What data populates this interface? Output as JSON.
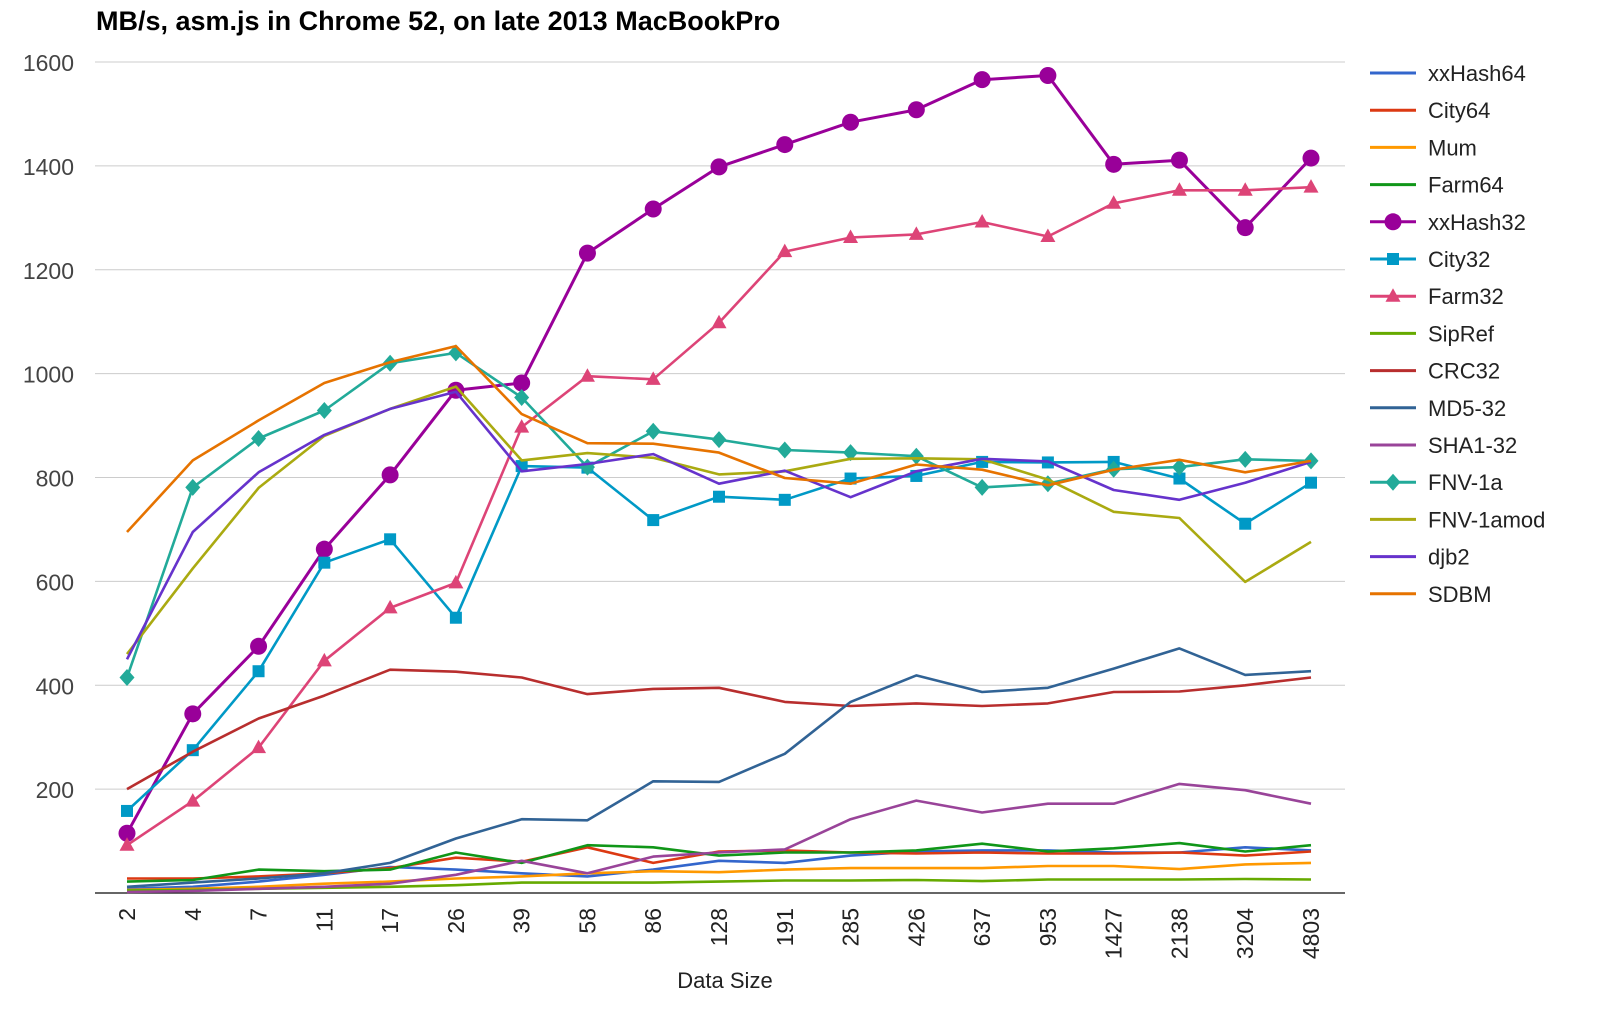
{
  "chart_data": {
    "type": "line",
    "title": "MB/s, asm.js in Chrome 52, on late 2013 MacBookPro",
    "xlabel": "Data Size",
    "ylabel": "",
    "ylim": [
      0,
      1600
    ],
    "yticks": [
      200,
      400,
      600,
      800,
      1000,
      1200,
      1400,
      1600
    ],
    "grid": true,
    "legend_position": "right",
    "categories": [
      "2",
      "4",
      "7",
      "11",
      "17",
      "26",
      "39",
      "58",
      "86",
      "128",
      "191",
      "285",
      "426",
      "637",
      "953",
      "1427",
      "2138",
      "3204",
      "4803"
    ],
    "series": [
      {
        "name": "xxHash64",
        "color": "#3366cc",
        "marker": "none",
        "values": [
          8,
          12,
          22,
          35,
          50,
          45,
          38,
          32,
          45,
          62,
          58,
          72,
          80,
          82,
          82,
          78,
          78,
          88,
          82
        ]
      },
      {
        "name": "City64",
        "color": "#dc3912",
        "marker": "none",
        "values": [
          28,
          28,
          32,
          38,
          48,
          68,
          60,
          88,
          58,
          80,
          82,
          78,
          76,
          78,
          76,
          76,
          78,
          72,
          80
        ]
      },
      {
        "name": "Mum",
        "color": "#ff9900",
        "marker": "none",
        "values": [
          6,
          8,
          12,
          18,
          22,
          28,
          32,
          38,
          42,
          40,
          45,
          48,
          48,
          48,
          52,
          52,
          46,
          55,
          58
        ]
      },
      {
        "name": "Farm64",
        "color": "#109618",
        "marker": "none",
        "values": [
          22,
          25,
          45,
          42,
          45,
          78,
          58,
          92,
          88,
          72,
          78,
          78,
          82,
          95,
          80,
          86,
          96,
          80,
          92
        ]
      },
      {
        "name": "xxHash32",
        "color": "#990099",
        "marker": "circle",
        "values": [
          115,
          345,
          475,
          662,
          805,
          968,
          982,
          1232,
          1317,
          1398,
          1441,
          1484,
          1508,
          1566,
          1574,
          1403,
          1411,
          1281,
          1415
        ]
      },
      {
        "name": "City32",
        "color": "#0099c6",
        "marker": "square",
        "values": [
          158,
          275,
          427,
          636,
          681,
          530,
          822,
          819,
          718,
          763,
          757,
          798,
          803,
          830,
          829,
          830,
          798,
          711,
          790
        ]
      },
      {
        "name": "Farm32",
        "color": "#dd4477",
        "marker": "triangle",
        "values": [
          92,
          177,
          280,
          447,
          549,
          597,
          897,
          995,
          989,
          1098,
          1235,
          1262,
          1268,
          1292,
          1264,
          1328,
          1353,
          1353,
          1359
        ]
      },
      {
        "name": "SipRef",
        "color": "#66aa00",
        "marker": "none",
        "values": [
          5,
          6,
          8,
          10,
          12,
          15,
          20,
          20,
          20,
          22,
          24,
          24,
          25,
          23,
          26,
          26,
          26,
          27,
          26
        ]
      },
      {
        "name": "CRC32",
        "color": "#b82e2e",
        "marker": "none",
        "values": [
          200,
          272,
          336,
          380,
          430,
          426,
          415,
          383,
          393,
          395,
          368,
          360,
          365,
          360,
          365,
          387,
          388,
          400,
          415
        ]
      },
      {
        "name": "MD5-32",
        "color": "#316395",
        "marker": "none",
        "values": [
          12,
          20,
          28,
          38,
          58,
          105,
          142,
          140,
          215,
          214,
          268,
          368,
          419,
          387,
          395,
          432,
          471,
          420,
          427
        ]
      },
      {
        "name": "SHA1-32",
        "color": "#994499",
        "marker": "none",
        "values": [
          2,
          4,
          8,
          12,
          18,
          35,
          62,
          38,
          70,
          78,
          84,
          142,
          178,
          155,
          172,
          172,
          210,
          198,
          172
        ]
      },
      {
        "name": "FNV-1a",
        "color": "#22aa99",
        "marker": "diamond",
        "values": [
          415,
          781,
          875,
          929,
          1020,
          1040,
          954,
          820,
          889,
          873,
          853,
          848,
          841,
          781,
          788,
          816,
          820,
          835,
          832
        ]
      },
      {
        "name": "FNV-1amod",
        "color": "#aaaa11",
        "marker": "none",
        "values": [
          460,
          625,
          780,
          880,
          932,
          975,
          833,
          847,
          838,
          806,
          812,
          836,
          837,
          835,
          796,
          734,
          722,
          599,
          676
        ]
      },
      {
        "name": "djb2",
        "color": "#6633cc",
        "marker": "none",
        "values": [
          450,
          695,
          810,
          882,
          932,
          965,
          812,
          826,
          845,
          788,
          813,
          762,
          812,
          836,
          831,
          776,
          757,
          790,
          830
        ]
      },
      {
        "name": "SDBM",
        "color": "#e67300",
        "marker": "none",
        "values": [
          695,
          833,
          910,
          982,
          1022,
          1053,
          922,
          866,
          865,
          848,
          799,
          788,
          825,
          815,
          785,
          815,
          834,
          810,
          832
        ]
      }
    ]
  }
}
